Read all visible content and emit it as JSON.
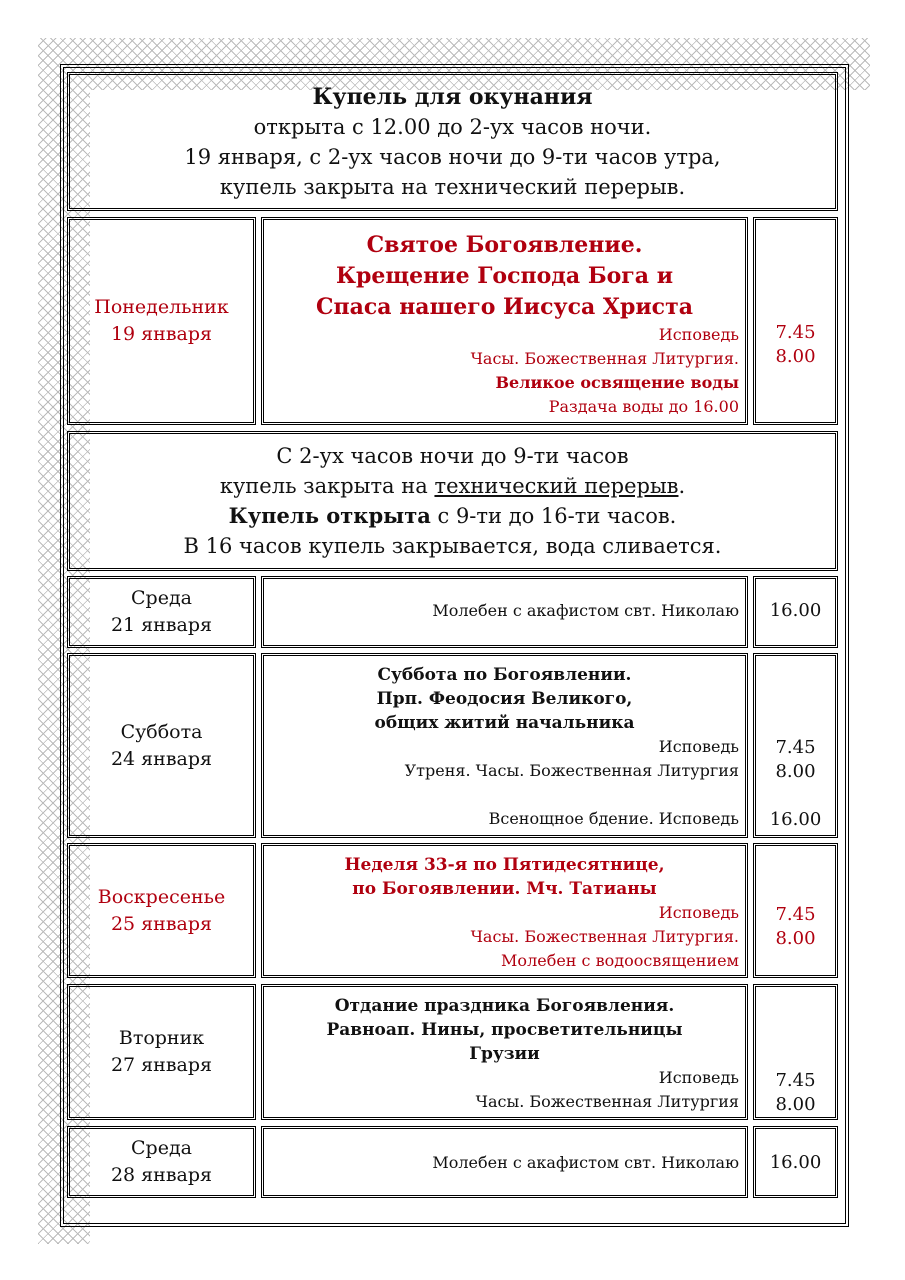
{
  "header": {
    "title": "Купель для окунания",
    "lines": [
      "открыта с 12.00 до 2-ух часов ночи.",
      "19 января, с 2-ух часов ночи до 9-ти часов утра,",
      "купель закрыта на технический перерыв."
    ]
  },
  "row1": {
    "day": "Понедельник",
    "date": "19 января",
    "title": [
      "Святое Богоявление.",
      "Крещение Господа Бога и",
      "Спаса нашего Иисуса Христа"
    ],
    "services": [
      "Исповедь",
      "Часы. Божественная Литургия.",
      "Великое освящение воды",
      "Раздача воды до 16.00"
    ],
    "times": [
      "7.45",
      "8.00"
    ]
  },
  "notice": {
    "l1": "С 2-ух часов ночи до 9-ти часов",
    "l2a": "купель закрыта на ",
    "l2b": "технический перерыв",
    "l2c": ".",
    "l3a": "Купель открыта",
    "l3b": " с 9-ти до 16-ти часов.",
    "l4": "В 16 часов купель закрывается, вода сливается."
  },
  "row2": {
    "day": "Среда",
    "date": "21 января",
    "service": "Молебен с акафистом свт. Николаю",
    "time": "16.00"
  },
  "row3": {
    "day": "Суббота",
    "date": "24 января",
    "title": [
      "Суббота по Богоявлении.",
      "Прп. Феодосия Великого,",
      "общих житий начальника"
    ],
    "services": [
      "Исповедь",
      "Утреня. Часы. Божественная Литургия",
      "Всенощное бдение. Исповедь"
    ],
    "times": [
      "7.45",
      "8.00",
      "16.00"
    ]
  },
  "row4": {
    "day": "Воскресенье",
    "date": "25 января",
    "title": [
      "Неделя 33-я по Пятидесятнице,",
      "по Богоявлении. Мч. Татианы"
    ],
    "services": [
      "Исповедь",
      "Часы. Божественная Литургия.",
      "Молебен с водоосвящением"
    ],
    "times": [
      "7.45",
      "8.00"
    ]
  },
  "row5": {
    "day": "Вторник",
    "date": "27 января",
    "title": [
      "Отдание праздника Богоявления.",
      "Равноап. Нины, просветительницы",
      "Грузии"
    ],
    "services": [
      "Исповедь",
      "Часы. Божественная Литургия"
    ],
    "times": [
      "7.45",
      "8.00"
    ]
  },
  "row6": {
    "day": "Среда",
    "date": "28 января",
    "service": "Молебен с акафистом свт. Николаю",
    "time": "16.00"
  },
  "colors": {
    "red": "#b0000f",
    "text": "#111111"
  }
}
